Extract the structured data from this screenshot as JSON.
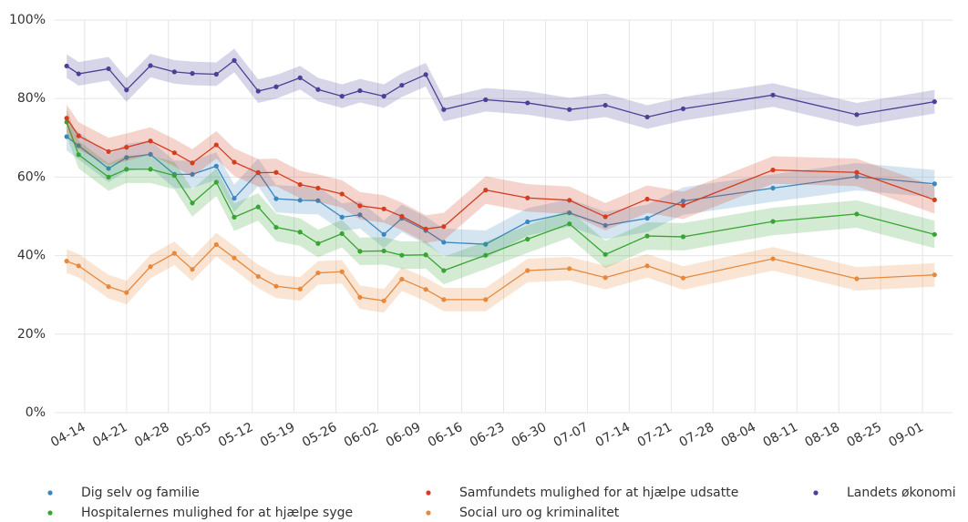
{
  "chart_data": {
    "type": "line",
    "x": [
      "04-11",
      "04-13",
      "04-18",
      "04-21",
      "04-25",
      "04-29",
      "05-02",
      "05-06",
      "05-09",
      "05-13",
      "05-16",
      "05-20",
      "05-23",
      "05-27",
      "05-30",
      "06-03",
      "06-06",
      "06-10",
      "06-13",
      "06-20",
      "06-27",
      "07-04",
      "07-10",
      "07-17",
      "07-23",
      "08-07",
      "08-21",
      "09-03"
    ],
    "xlim": [
      "04-09",
      "09-06"
    ],
    "xticks": [
      "04-14",
      "04-21",
      "04-28",
      "05-05",
      "05-12",
      "05-19",
      "05-26",
      "06-02",
      "06-09",
      "06-16",
      "06-23",
      "06-30",
      "07-07",
      "07-14",
      "07-21",
      "07-28",
      "08-04",
      "08-11",
      "08-18",
      "08-25",
      "09-01"
    ],
    "ylim": [
      0,
      100
    ],
    "yticks": [
      {
        "value": 0,
        "label": "0%"
      },
      {
        "value": 20,
        "label": "20%"
      },
      {
        "value": 40,
        "label": "40%"
      },
      {
        "value": 60,
        "label": "60%"
      },
      {
        "value": 80,
        "label": "80%"
      },
      {
        "value": 100,
        "label": "100%"
      }
    ],
    "grid": true,
    "series": [
      {
        "name": "Dig selv og familie",
        "color": "#3a87c0",
        "error": 3.5,
        "values": [
          70.3,
          68,
          62.2,
          65,
          65.8,
          60.7,
          60.7,
          62.8,
          54.6,
          61.2,
          54.5,
          54.1,
          54,
          49.8,
          50.4,
          45.4,
          49.5,
          46.4,
          43.4,
          42.9,
          48.6,
          50.9,
          47.7,
          49.5,
          53.9,
          57.2,
          60.1,
          58.3
        ]
      },
      {
        "name": "Hospitalernes mulighed for at hjælpe syge",
        "color": "#36a531",
        "error": 3.5,
        "values": [
          74,
          65.7,
          60,
          62,
          62,
          60.4,
          53.4,
          58.7,
          49.8,
          52.4,
          47.2,
          46,
          43.1,
          45.6,
          41.1,
          41.2,
          40.1,
          40.2,
          36.2,
          40.1,
          44.2,
          48.1,
          40.3,
          45,
          44.8,
          48.7,
          50.6,
          45.4
        ]
      },
      {
        "name": "Samfundets mulighed for at hjælpe udsatte",
        "color": "#d43d1f",
        "error": 3.5,
        "values": [
          75,
          70.5,
          66.5,
          67.6,
          69.2,
          66.2,
          63.6,
          68.2,
          63.8,
          61.1,
          61.2,
          58.1,
          57.2,
          55.7,
          52.7,
          51.9,
          50,
          46.8,
          47.4,
          56.7,
          54.7,
          54.1,
          49.9,
          54.4,
          52.8,
          61.8,
          61.2,
          54.2
        ]
      },
      {
        "name": "Social uro og kriminalitet",
        "color": "#e8883a",
        "error": 3,
        "values": [
          38.6,
          37.4,
          32.1,
          30.6,
          37.2,
          40.6,
          36.5,
          42.8,
          39.4,
          34.7,
          32.2,
          31.5,
          35.6,
          35.9,
          29.4,
          28.5,
          34,
          31.4,
          28.8,
          28.8,
          36.2,
          36.7,
          34.4,
          37.4,
          34.3,
          39.2,
          34.1,
          35.1
        ]
      },
      {
        "name": "Landets økonomi",
        "color": "#4b3f96",
        "error": 3,
        "values": [
          88.3,
          86.3,
          87.6,
          82.2,
          88.4,
          86.8,
          86.4,
          86.2,
          89.7,
          81.9,
          83,
          85.3,
          82.3,
          80.6,
          82,
          80.6,
          83.4,
          86.1,
          77.2,
          79.7,
          78.9,
          77.2,
          78.3,
          75.3,
          77.4,
          80.9,
          75.9,
          79.2
        ]
      }
    ]
  }
}
